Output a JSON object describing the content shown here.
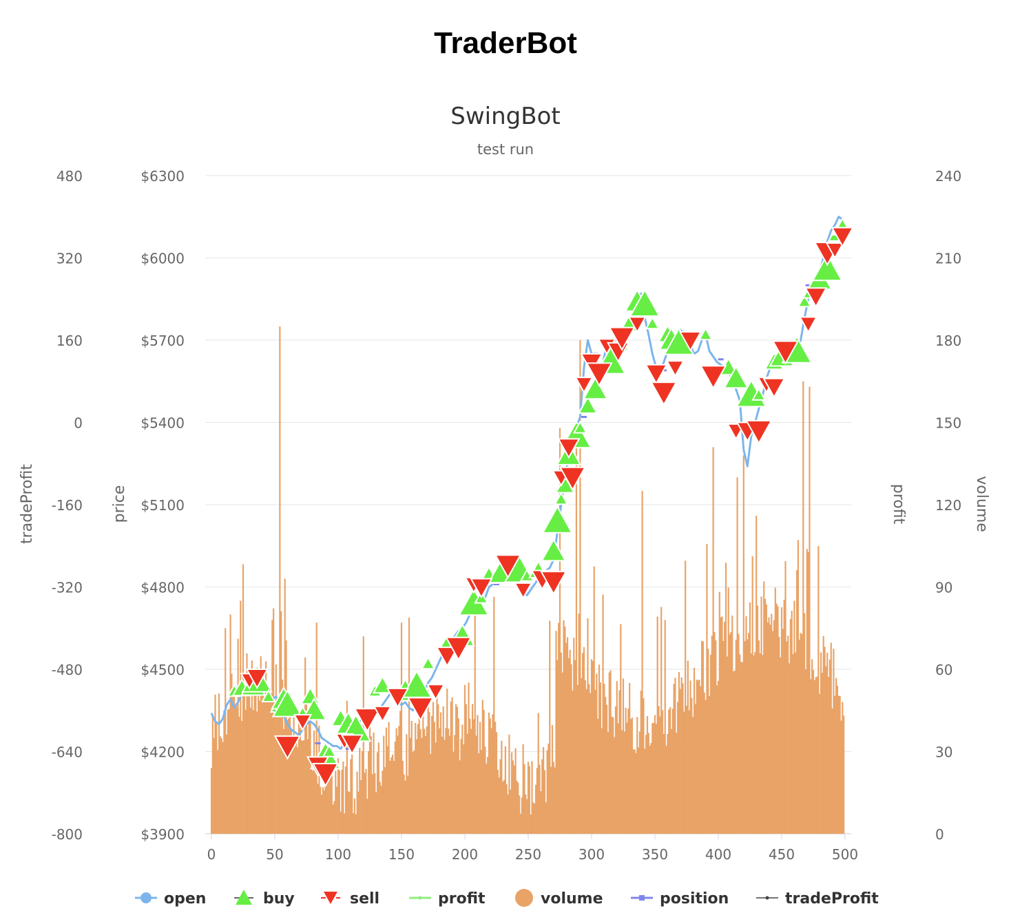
{
  "page_title": "TraderBot",
  "chart_data": {
    "type": "line",
    "title": "SwingBot",
    "subtitle": "test run",
    "x": {
      "ticks": [
        "0",
        "50",
        "100",
        "150",
        "200",
        "250",
        "300",
        "350",
        "400",
        "450",
        "500"
      ],
      "range": [
        0,
        500
      ]
    },
    "axes": {
      "tradeProfit": {
        "label": "tradeProfit",
        "range": [
          -800,
          480
        ],
        "ticks": [
          "-800",
          "-640",
          "-480",
          "-320",
          "-160",
          "0",
          "160",
          "320",
          "480"
        ]
      },
      "price": {
        "label": "price",
        "range": [
          3900,
          6300
        ],
        "ticks": [
          "$3900",
          "$4200",
          "$4500",
          "$4800",
          "$5100",
          "$5400",
          "$5700",
          "$6000",
          "$6300"
        ]
      },
      "profit": {
        "label": "profit"
      },
      "volume": {
        "label": "volume",
        "range": [
          0,
          240
        ],
        "ticks": [
          "0",
          "30",
          "60",
          "90",
          "120",
          "150",
          "180",
          "210",
          "240"
        ]
      }
    },
    "legend": {
      "position": "bottom",
      "items": [
        {
          "name": "open",
          "color": "#7cb5ec",
          "symbol": "circle"
        },
        {
          "name": "buy",
          "color": "#66ee44",
          "symbol": "triangle-up"
        },
        {
          "name": "sell",
          "color": "#ee3322",
          "symbol": "triangle-down"
        },
        {
          "name": "profit",
          "color": "#90ed7d",
          "symbol": "line"
        },
        {
          "name": "volume",
          "color": "#e9a367",
          "symbol": "circle"
        },
        {
          "name": "position",
          "color": "#8085e9",
          "symbol": "square"
        },
        {
          "name": "tradeProfit",
          "color": "#434348",
          "symbol": "line"
        }
      ]
    },
    "open_series": [
      [
        0,
        4340
      ],
      [
        3,
        4310
      ],
      [
        6,
        4300
      ],
      [
        9,
        4320
      ],
      [
        12,
        4370
      ],
      [
        15,
        4390
      ],
      [
        18,
        4360
      ],
      [
        21,
        4380
      ],
      [
        24,
        4410
      ],
      [
        27,
        4430
      ],
      [
        30,
        4420
      ],
      [
        33,
        4440
      ],
      [
        36,
        4450
      ],
      [
        39,
        4420
      ],
      [
        42,
        4410
      ],
      [
        45,
        4400
      ],
      [
        48,
        4390
      ],
      [
        51,
        4400
      ],
      [
        54,
        4380
      ],
      [
        57,
        4330
      ],
      [
        60,
        4300
      ],
      [
        63,
        4280
      ],
      [
        66,
        4270
      ],
      [
        69,
        4260
      ],
      [
        72,
        4280
      ],
      [
        75,
        4300
      ],
      [
        78,
        4310
      ],
      [
        81,
        4300
      ],
      [
        84,
        4280
      ],
      [
        87,
        4250
      ],
      [
        90,
        4240
      ],
      [
        93,
        4230
      ],
      [
        96,
        4220
      ],
      [
        99,
        4220
      ],
      [
        102,
        4210
      ],
      [
        105,
        4230
      ],
      [
        108,
        4250
      ],
      [
        111,
        4280
      ],
      [
        114,
        4300
      ],
      [
        117,
        4310
      ],
      [
        120,
        4320
      ],
      [
        123,
        4320
      ],
      [
        126,
        4330
      ],
      [
        129,
        4340
      ],
      [
        132,
        4350
      ],
      [
        135,
        4370
      ],
      [
        138,
        4390
      ],
      [
        141,
        4410
      ],
      [
        144,
        4400
      ],
      [
        147,
        4380
      ],
      [
        150,
        4370
      ],
      [
        153,
        4380
      ],
      [
        156,
        4360
      ],
      [
        159,
        4350
      ],
      [
        162,
        4370
      ],
      [
        165,
        4400
      ],
      [
        168,
        4420
      ],
      [
        171,
        4450
      ],
      [
        174,
        4470
      ],
      [
        177,
        4500
      ],
      [
        180,
        4530
      ],
      [
        183,
        4560
      ],
      [
        186,
        4590
      ],
      [
        189,
        4600
      ],
      [
        192,
        4620
      ],
      [
        195,
        4640
      ],
      [
        198,
        4650
      ],
      [
        201,
        4670
      ],
      [
        204,
        4700
      ],
      [
        207,
        4720
      ],
      [
        210,
        4750
      ],
      [
        213,
        4770
      ],
      [
        216,
        4760
      ],
      [
        219,
        4800
      ],
      [
        222,
        4810
      ],
      [
        225,
        4830
      ],
      [
        228,
        4850
      ],
      [
        231,
        4870
      ],
      [
        234,
        4880
      ],
      [
        237,
        4860
      ],
      [
        240,
        4830
      ],
      [
        243,
        4800
      ],
      [
        246,
        4780
      ],
      [
        249,
        4770
      ],
      [
        252,
        4790
      ],
      [
        255,
        4810
      ],
      [
        258,
        4830
      ],
      [
        261,
        4850
      ],
      [
        264,
        4860
      ],
      [
        267,
        4870
      ],
      [
        270,
        4900
      ],
      [
        273,
        5000
      ],
      [
        276,
        5100
      ],
      [
        279,
        5200
      ],
      [
        282,
        5280
      ],
      [
        285,
        5320
      ],
      [
        288,
        5380
      ],
      [
        291,
        5420
      ],
      [
        294,
        5600
      ],
      [
        297,
        5700
      ],
      [
        300,
        5650
      ],
      [
        303,
        5560
      ],
      [
        306,
        5600
      ],
      [
        309,
        5620
      ],
      [
        312,
        5680
      ],
      [
        315,
        5700
      ],
      [
        318,
        5670
      ],
      [
        321,
        5650
      ],
      [
        324,
        5680
      ],
      [
        327,
        5720
      ],
      [
        330,
        5760
      ],
      [
        333,
        5800
      ],
      [
        336,
        5820
      ],
      [
        339,
        5870
      ],
      [
        342,
        5780
      ],
      [
        345,
        5720
      ],
      [
        348,
        5650
      ],
      [
        351,
        5600
      ],
      [
        354,
        5580
      ],
      [
        357,
        5620
      ],
      [
        360,
        5660
      ],
      [
        363,
        5700
      ],
      [
        366,
        5710
      ],
      [
        369,
        5740
      ],
      [
        372,
        5730
      ],
      [
        375,
        5700
      ],
      [
        378,
        5680
      ],
      [
        381,
        5650
      ],
      [
        384,
        5660
      ],
      [
        387,
        5700
      ],
      [
        390,
        5720
      ],
      [
        393,
        5660
      ],
      [
        396,
        5640
      ],
      [
        399,
        5620
      ],
      [
        402,
        5610
      ],
      [
        405,
        5600
      ],
      [
        408,
        5580
      ],
      [
        411,
        5560
      ],
      [
        414,
        5520
      ],
      [
        417,
        5480
      ],
      [
        420,
        5300
      ],
      [
        423,
        5240
      ],
      [
        426,
        5350
      ],
      [
        429,
        5400
      ],
      [
        432,
        5450
      ],
      [
        435,
        5500
      ],
      [
        438,
        5560
      ],
      [
        441,
        5600
      ],
      [
        444,
        5620
      ],
      [
        447,
        5650
      ],
      [
        450,
        5660
      ],
      [
        453,
        5670
      ],
      [
        456,
        5680
      ],
      [
        459,
        5660
      ],
      [
        462,
        5650
      ],
      [
        465,
        5700
      ],
      [
        468,
        5780
      ],
      [
        471,
        5850
      ],
      [
        474,
        5900
      ],
      [
        477,
        5920
      ],
      [
        480,
        5950
      ],
      [
        483,
        6000
      ],
      [
        486,
        6060
      ],
      [
        489,
        6100
      ],
      [
        492,
        6120
      ],
      [
        495,
        6150
      ],
      [
        498,
        6140
      ]
    ],
    "buy_points": [
      [
        18,
        4420
      ],
      [
        24,
        4430
      ],
      [
        33,
        4440
      ],
      [
        36,
        4460
      ],
      [
        45,
        4400
      ],
      [
        54,
        4370
      ],
      [
        57,
        4390
      ],
      [
        60,
        4370
      ],
      [
        72,
        4340
      ],
      [
        78,
        4400
      ],
      [
        81,
        4350
      ],
      [
        90,
        4180
      ],
      [
        93,
        4200
      ],
      [
        102,
        4320
      ],
      [
        108,
        4300
      ],
      [
        114,
        4280
      ],
      [
        129,
        4420
      ],
      [
        135,
        4440
      ],
      [
        153,
        4420
      ],
      [
        162,
        4440
      ],
      [
        171,
        4520
      ],
      [
        186,
        4590
      ],
      [
        198,
        4620
      ],
      [
        207,
        4740
      ],
      [
        213,
        4760
      ],
      [
        219,
        4840
      ],
      [
        228,
        4850
      ],
      [
        243,
        4860
      ],
      [
        249,
        4840
      ],
      [
        258,
        4860
      ],
      [
        270,
        4930
      ],
      [
        273,
        5040
      ],
      [
        276,
        5120
      ],
      [
        279,
        5170
      ],
      [
        282,
        5280
      ],
      [
        288,
        5350
      ],
      [
        291,
        5380
      ],
      [
        297,
        5460
      ],
      [
        303,
        5520
      ],
      [
        315,
        5620
      ],
      [
        324,
        5680
      ],
      [
        330,
        5760
      ],
      [
        336,
        5840
      ],
      [
        342,
        5830
      ],
      [
        348,
        5760
      ],
      [
        360,
        5720
      ],
      [
        363,
        5700
      ],
      [
        369,
        5690
      ],
      [
        390,
        5720
      ],
      [
        408,
        5600
      ],
      [
        414,
        5560
      ],
      [
        426,
        5500
      ],
      [
        432,
        5500
      ],
      [
        444,
        5620
      ],
      [
        450,
        5640
      ],
      [
        462,
        5660
      ],
      [
        468,
        5840
      ],
      [
        474,
        5880
      ],
      [
        480,
        5920
      ],
      [
        486,
        5960
      ],
      [
        492,
        6080
      ],
      [
        498,
        6110
      ]
    ],
    "sell_points": [
      [
        30,
        4460
      ],
      [
        36,
        4470
      ],
      [
        60,
        4220
      ],
      [
        72,
        4310
      ],
      [
        84,
        4150
      ],
      [
        90,
        4120
      ],
      [
        105,
        4240
      ],
      [
        111,
        4230
      ],
      [
        123,
        4320
      ],
      [
        135,
        4340
      ],
      [
        147,
        4400
      ],
      [
        165,
        4360
      ],
      [
        177,
        4420
      ],
      [
        186,
        4550
      ],
      [
        195,
        4580
      ],
      [
        207,
        4810
      ],
      [
        213,
        4800
      ],
      [
        234,
        4880
      ],
      [
        246,
        4790
      ],
      [
        261,
        4830
      ],
      [
        270,
        4820
      ],
      [
        276,
        5200
      ],
      [
        282,
        5310
      ],
      [
        285,
        5200
      ],
      [
        294,
        5540
      ],
      [
        300,
        5620
      ],
      [
        306,
        5580
      ],
      [
        312,
        5680
      ],
      [
        321,
        5660
      ],
      [
        324,
        5710
      ],
      [
        336,
        5760
      ],
      [
        351,
        5580
      ],
      [
        357,
        5510
      ],
      [
        366,
        5600
      ],
      [
        378,
        5700
      ],
      [
        396,
        5570
      ],
      [
        414,
        5370
      ],
      [
        423,
        5370
      ],
      [
        432,
        5370
      ],
      [
        438,
        5540
      ],
      [
        444,
        5530
      ],
      [
        453,
        5660
      ],
      [
        471,
        5760
      ],
      [
        477,
        5860
      ],
      [
        486,
        6020
      ],
      [
        492,
        6030
      ],
      [
        498,
        6080
      ]
    ],
    "position_points": [
      [
        24,
        4430
      ],
      [
        36,
        4430
      ],
      [
        54,
        4330
      ],
      [
        84,
        4230
      ],
      [
        108,
        4210
      ],
      [
        126,
        4320
      ],
      [
        144,
        4400
      ],
      [
        162,
        4370
      ],
      [
        186,
        4540
      ],
      [
        207,
        4740
      ],
      [
        225,
        4810
      ],
      [
        249,
        4800
      ],
      [
        270,
        4840
      ],
      [
        285,
        5310
      ],
      [
        294,
        5420
      ],
      [
        303,
        5650
      ],
      [
        321,
        5700
      ],
      [
        339,
        5860
      ],
      [
        357,
        5590
      ],
      [
        378,
        5650
      ],
      [
        402,
        5630
      ],
      [
        426,
        5470
      ],
      [
        438,
        5560
      ],
      [
        447,
        5640
      ],
      [
        471,
        5900
      ],
      [
        489,
        6050
      ]
    ],
    "volume_note": "dense bars, base level ~20-50 before x=265, ~40-90 after, spikes up to ~185"
  }
}
